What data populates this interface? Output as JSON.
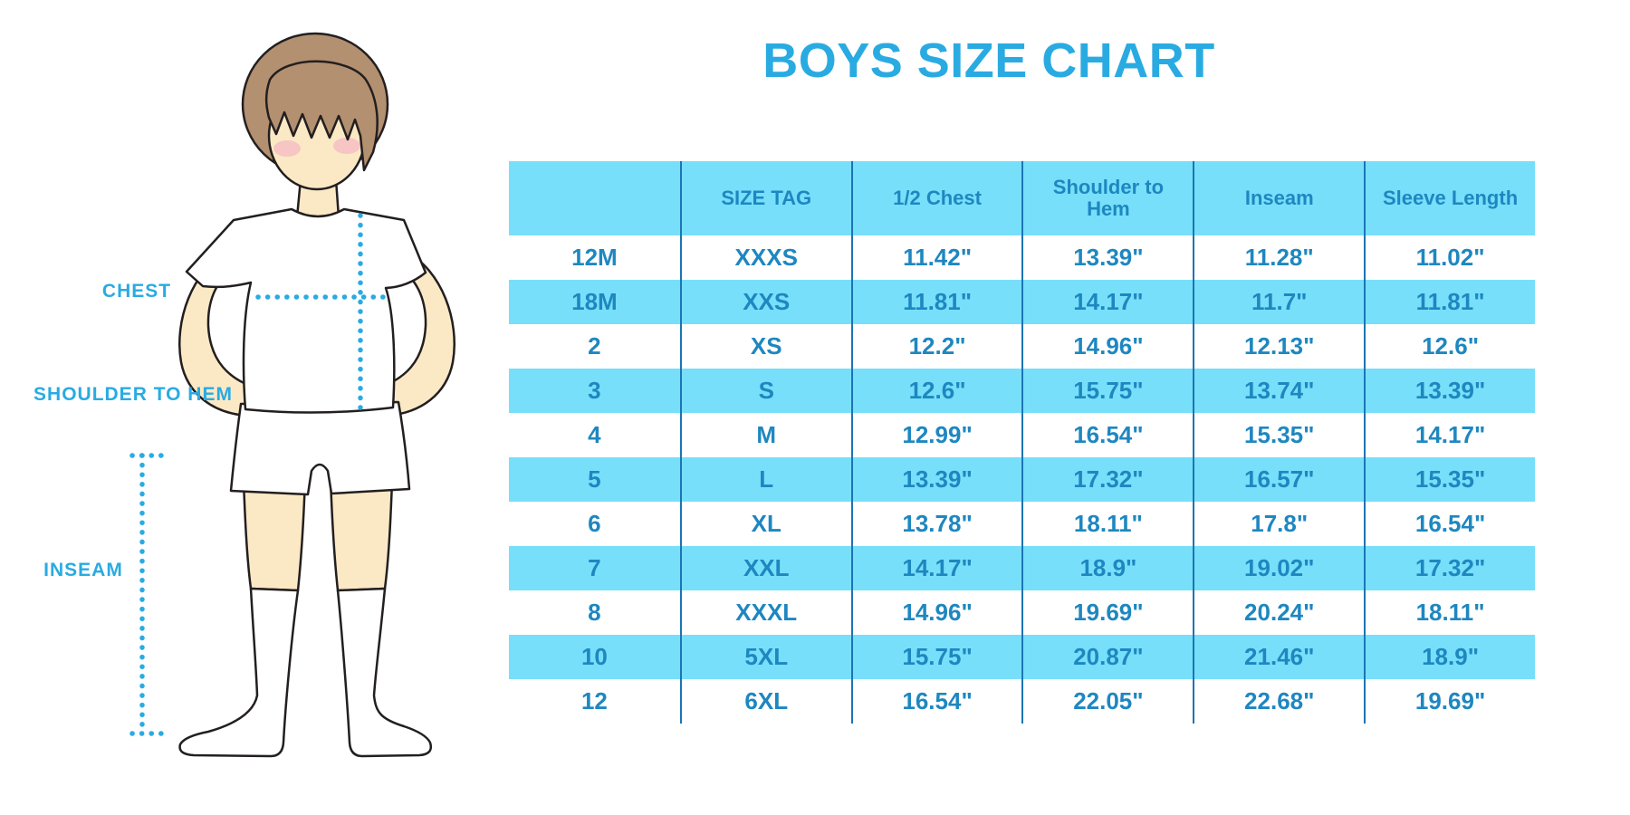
{
  "title": "BOYS SIZE CHART",
  "figure": {
    "labels": {
      "chest": "CHEST",
      "shoulder_to_hem": "SHOULDER TO HEM",
      "inseam": "INSEAM"
    }
  },
  "table": {
    "headers": [
      "",
      "SIZE TAG",
      "1/2 Chest",
      "Shoulder to Hem",
      "Inseam",
      "Sleeve Length"
    ],
    "rows": [
      [
        "12M",
        "XXXS",
        "11.42\"",
        "13.39\"",
        "11.28\"",
        "11.02\""
      ],
      [
        "18M",
        "XXS",
        "11.81\"",
        "14.17\"",
        "11.7\"",
        "11.81\""
      ],
      [
        "2",
        "XS",
        "12.2\"",
        "14.96\"",
        "12.13\"",
        "12.6\""
      ],
      [
        "3",
        "S",
        "12.6\"",
        "15.75\"",
        "13.74\"",
        "13.39\""
      ],
      [
        "4",
        "M",
        "12.99\"",
        "16.54\"",
        "15.35\"",
        "14.17\""
      ],
      [
        "5",
        "L",
        "13.39\"",
        "17.32\"",
        "16.57\"",
        "15.35\""
      ],
      [
        "6",
        "XL",
        "13.78\"",
        "18.11\"",
        "17.8\"",
        "16.54\""
      ],
      [
        "7",
        "XXL",
        "14.17\"",
        "18.9\"",
        "19.02\"",
        "17.32\""
      ],
      [
        "8",
        "XXXL",
        "14.96\"",
        "19.69\"",
        "20.24\"",
        "18.11\""
      ],
      [
        "10",
        "5XL",
        "15.75\"",
        "20.87\"",
        "21.46\"",
        "18.9\""
      ],
      [
        "12",
        "6XL",
        "16.54\"",
        "22.05\"",
        "22.68\"",
        "19.69\""
      ]
    ]
  },
  "colors": {
    "accent": "#29ABE2",
    "stripe": "#77DFFA",
    "cell_text": "#1E87C0",
    "line": "#1B75B4",
    "ink": "#231F20",
    "skin": "#FBE9C6",
    "hair": "#B39070",
    "blush": "#F3AEC3"
  }
}
